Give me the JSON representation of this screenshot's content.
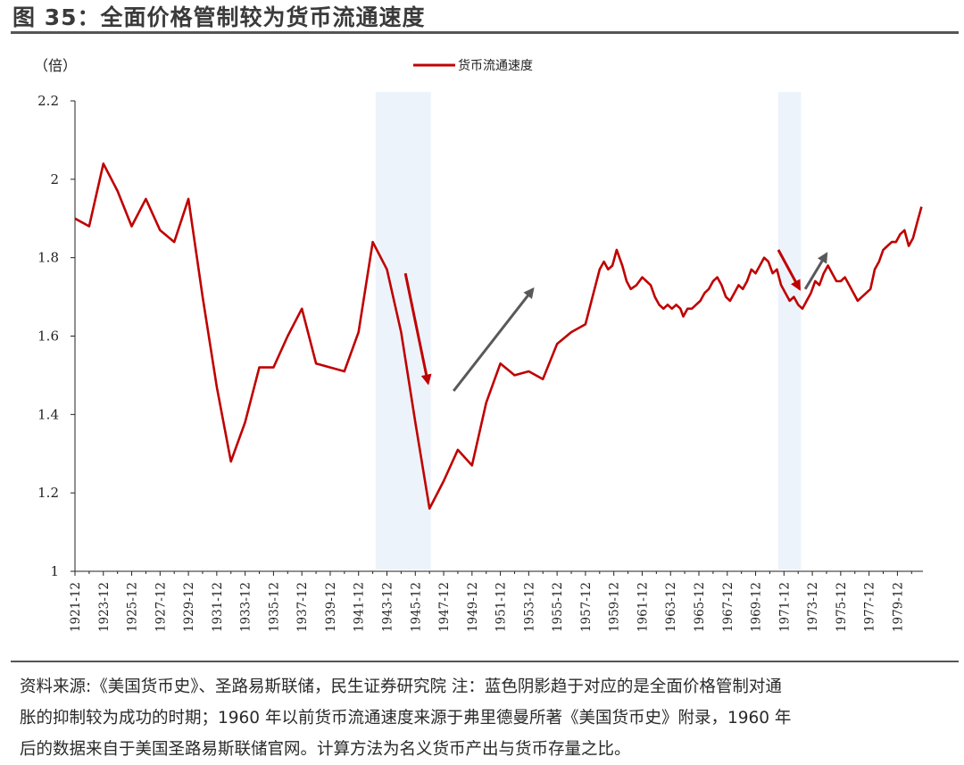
{
  "header": {
    "title": "图 35：全面价格管制较为货币流通速度"
  },
  "chart_data": {
    "type": "line",
    "unit_label": "（倍）",
    "ylim": [
      1,
      2.2
    ],
    "yticks": [
      1,
      1.2,
      1.4,
      1.6,
      1.8,
      2,
      2.2
    ],
    "ytick_labels": [
      "1",
      "1.2",
      "1.4",
      "1.6",
      "1.8",
      "2",
      "2.2"
    ],
    "xlim": [
      1921,
      1980.8
    ],
    "xtick_labels": [
      "1921-12",
      "1923-12",
      "1925-12",
      "1927-12",
      "1929-12",
      "1931-12",
      "1933-12",
      "1935-12",
      "1937-12",
      "1939-12",
      "1941-12",
      "1943-12",
      "1945-12",
      "1947-12",
      "1949-12",
      "1951-12",
      "1953-12",
      "1955-12",
      "1957-12",
      "1959-12",
      "1961-12",
      "1963-12",
      "1965-12",
      "1967-12",
      "1969-12",
      "1971-12",
      "1973-12",
      "1975-12",
      "1977-12",
      "1979-12"
    ],
    "series": [
      {
        "name": "货币流通速度",
        "color": "#c00000",
        "points": [
          [
            1921,
            1.9
          ],
          [
            1922,
            1.88
          ],
          [
            1923,
            2.04
          ],
          [
            1924,
            1.97
          ],
          [
            1925,
            1.88
          ],
          [
            1926,
            1.95
          ],
          [
            1927,
            1.87
          ],
          [
            1928,
            1.84
          ],
          [
            1929,
            1.95
          ],
          [
            1930,
            1.7
          ],
          [
            1931,
            1.47
          ],
          [
            1932,
            1.28
          ],
          [
            1933,
            1.38
          ],
          [
            1934,
            1.52
          ],
          [
            1935,
            1.52
          ],
          [
            1936,
            1.6
          ],
          [
            1937,
            1.67
          ],
          [
            1938,
            1.53
          ],
          [
            1939,
            1.52
          ],
          [
            1940,
            1.51
          ],
          [
            1941,
            1.61
          ],
          [
            1942,
            1.84
          ],
          [
            1943,
            1.77
          ],
          [
            1944,
            1.61
          ],
          [
            1945,
            1.38
          ],
          [
            1946,
            1.16
          ],
          [
            1947,
            1.23
          ],
          [
            1948,
            1.31
          ],
          [
            1949,
            1.27
          ],
          [
            1950,
            1.43
          ],
          [
            1951,
            1.53
          ],
          [
            1952,
            1.5
          ],
          [
            1953,
            1.51
          ],
          [
            1954,
            1.49
          ],
          [
            1955,
            1.58
          ],
          [
            1956,
            1.61
          ],
          [
            1957,
            1.63
          ],
          [
            1957.5,
            1.7
          ],
          [
            1958,
            1.77
          ],
          [
            1958.3,
            1.79
          ],
          [
            1958.6,
            1.77
          ],
          [
            1958.9,
            1.78
          ],
          [
            1959.2,
            1.82
          ],
          [
            1959.6,
            1.78
          ],
          [
            1959.9,
            1.74
          ],
          [
            1960.2,
            1.72
          ],
          [
            1960.6,
            1.73
          ],
          [
            1961,
            1.75
          ],
          [
            1961.3,
            1.74
          ],
          [
            1961.6,
            1.73
          ],
          [
            1961.9,
            1.7
          ],
          [
            1962.2,
            1.68
          ],
          [
            1962.5,
            1.67
          ],
          [
            1962.8,
            1.68
          ],
          [
            1963.1,
            1.67
          ],
          [
            1963.4,
            1.68
          ],
          [
            1963.7,
            1.67
          ],
          [
            1963.9,
            1.65
          ],
          [
            1964.2,
            1.67
          ],
          [
            1964.5,
            1.67
          ],
          [
            1964.8,
            1.68
          ],
          [
            1965.1,
            1.69
          ],
          [
            1965.4,
            1.71
          ],
          [
            1965.7,
            1.72
          ],
          [
            1966,
            1.74
          ],
          [
            1966.3,
            1.75
          ],
          [
            1966.6,
            1.73
          ],
          [
            1966.9,
            1.7
          ],
          [
            1967.2,
            1.69
          ],
          [
            1967.5,
            1.71
          ],
          [
            1967.8,
            1.73
          ],
          [
            1968.1,
            1.72
          ],
          [
            1968.4,
            1.74
          ],
          [
            1968.7,
            1.77
          ],
          [
            1969,
            1.76
          ],
          [
            1969.3,
            1.78
          ],
          [
            1969.6,
            1.8
          ],
          [
            1969.9,
            1.79
          ],
          [
            1970.2,
            1.76
          ],
          [
            1970.5,
            1.77
          ],
          [
            1970.8,
            1.73
          ],
          [
            1971.1,
            1.71
          ],
          [
            1971.4,
            1.69
          ],
          [
            1971.7,
            1.7
          ],
          [
            1972,
            1.68
          ],
          [
            1972.3,
            1.67
          ],
          [
            1972.6,
            1.69
          ],
          [
            1972.9,
            1.71
          ],
          [
            1973.2,
            1.74
          ],
          [
            1973.5,
            1.73
          ],
          [
            1973.8,
            1.76
          ],
          [
            1974.1,
            1.78
          ],
          [
            1974.4,
            1.76
          ],
          [
            1974.7,
            1.74
          ],
          [
            1975,
            1.74
          ],
          [
            1975.3,
            1.75
          ],
          [
            1975.6,
            1.73
          ],
          [
            1975.9,
            1.71
          ],
          [
            1976.2,
            1.69
          ],
          [
            1976.5,
            1.7
          ],
          [
            1976.8,
            1.71
          ],
          [
            1977.1,
            1.72
          ],
          [
            1977.4,
            1.77
          ],
          [
            1977.7,
            1.79
          ],
          [
            1978,
            1.82
          ],
          [
            1978.3,
            1.83
          ],
          [
            1978.6,
            1.84
          ],
          [
            1978.9,
            1.84
          ],
          [
            1979.2,
            1.86
          ],
          [
            1979.5,
            1.87
          ],
          [
            1979.8,
            1.83
          ],
          [
            1980.1,
            1.85
          ],
          [
            1980.4,
            1.89
          ],
          [
            1980.7,
            1.93
          ]
        ]
      }
    ],
    "shaded_regions": [
      {
        "from": 1942.2,
        "to": 1946.1,
        "color": "#edf3fa"
      },
      {
        "from": 1970.6,
        "to": 1972.2,
        "color": "#edf3fa"
      }
    ],
    "arrows": [
      {
        "from": [
          1944.3,
          1.76
        ],
        "to": [
          1945.9,
          1.48
        ],
        "color": "#c00000"
      },
      {
        "from": [
          1947.7,
          1.46
        ],
        "to": [
          1953.3,
          1.72
        ],
        "color": "#595959"
      },
      {
        "from": [
          1970.6,
          1.82
        ],
        "to": [
          1972.1,
          1.72
        ],
        "color": "#c00000"
      },
      {
        "from": [
          1972.5,
          1.72
        ],
        "to": [
          1974.0,
          1.81
        ],
        "color": "#595959"
      }
    ]
  },
  "footnote": {
    "line1": "资料来源:《美国货币史》、圣路易斯联储，民生证券研究院  注：蓝色阴影趋于对应的是全面价格管制对通",
    "line2": "胀的抑制较为成功的时期；1960 年以前货币流通速度来源于弗里德曼所著《美国货币史》附录，1960 年",
    "line3": "后的数据来自于美国圣路易斯联储官网。计算方法为名义货币产出与货币存量之比。"
  }
}
